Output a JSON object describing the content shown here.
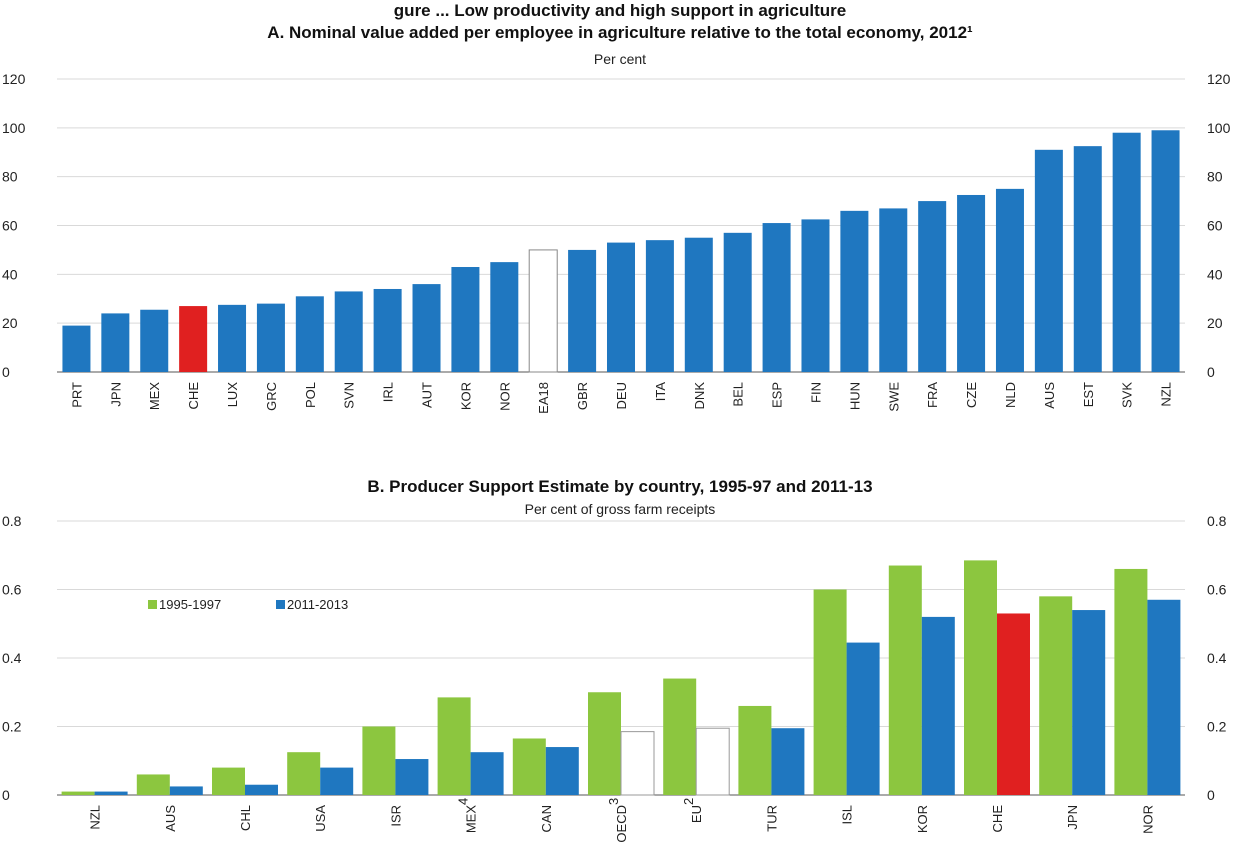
{
  "page_title": "gure ... Low productivity and high support in agriculture",
  "chart_data": [
    {
      "type": "bar",
      "title": "A. Nominal value added per employee in agriculture relative to the total economy, 2012¹",
      "subtitle": "Per cent",
      "ylim": [
        0,
        120
      ],
      "yticks": [
        "0",
        "20",
        "40",
        "60",
        "80",
        "100",
        "120"
      ],
      "grid": true,
      "categories": [
        "PRT",
        "JPN",
        "MEX",
        "CHE",
        "LUX",
        "GRC",
        "POL",
        "SVN",
        "IRL",
        "AUT",
        "KOR",
        "NOR",
        "EA18",
        "GBR",
        "DEU",
        "ITA",
        "DNK",
        "BEL",
        "ESP",
        "FIN",
        "HUN",
        "SWE",
        "FRA",
        "CZE",
        "NLD",
        "AUS",
        "EST",
        "SVK",
        "NZL"
      ],
      "values": [
        19,
        24,
        25.5,
        27,
        27.5,
        28,
        31,
        33,
        34,
        36,
        43,
        45,
        50,
        50,
        53,
        54,
        55,
        57,
        61,
        62.5,
        66,
        67,
        70,
        72.5,
        75,
        91,
        92.5,
        98,
        99
      ],
      "colors": {
        "default": "#1f77c0",
        "highlight": "#e02020",
        "hollow": "#ffffff"
      },
      "highlight": [
        "CHE"
      ],
      "hollow": [
        "EA18"
      ]
    },
    {
      "type": "bar",
      "title": "B. Producer Support Estimate by country, 1995-97 and 2011-13",
      "subtitle": "Per cent of gross farm receipts",
      "ylim": [
        0,
        0.8
      ],
      "yticks": [
        "0",
        "0.2",
        "0.4",
        "0.6",
        "0.8"
      ],
      "grid": true,
      "legend_position": "top-left",
      "categories": [
        {
          "label": "NZL",
          "sup": ""
        },
        {
          "label": "AUS",
          "sup": ""
        },
        {
          "label": "CHL",
          "sup": ""
        },
        {
          "label": "USA",
          "sup": ""
        },
        {
          "label": "ISR",
          "sup": ""
        },
        {
          "label": "MEX",
          "sup": "4"
        },
        {
          "label": "CAN",
          "sup": ""
        },
        {
          "label": "OECD",
          "sup": "3"
        },
        {
          "label": "EU",
          "sup": "2"
        },
        {
          "label": "TUR",
          "sup": ""
        },
        {
          "label": "ISL",
          "sup": ""
        },
        {
          "label": "KOR",
          "sup": ""
        },
        {
          "label": "CHE",
          "sup": ""
        },
        {
          "label": "JPN",
          "sup": ""
        },
        {
          "label": "NOR",
          "sup": ""
        }
      ],
      "series": [
        {
          "name": "1995-1997",
          "color": "#8cc63f",
          "values": [
            0.01,
            0.06,
            0.08,
            0.125,
            0.2,
            0.285,
            0.165,
            0.3,
            0.34,
            0.26,
            0.6,
            0.67,
            0.685,
            0.58,
            0.66
          ]
        },
        {
          "name": "2011-2013",
          "color": "#1f77c0",
          "values": [
            0.01,
            0.025,
            0.03,
            0.08,
            0.105,
            0.125,
            0.14,
            0.185,
            0.195,
            0.195,
            0.445,
            0.52,
            0.53,
            0.54,
            0.57
          ]
        }
      ],
      "colors": {
        "highlight": "#e02020",
        "hollow": "#ffffff"
      },
      "highlight_series2": [
        "CHE"
      ],
      "hollow_series2": [
        "OECD",
        "EU"
      ]
    }
  ]
}
